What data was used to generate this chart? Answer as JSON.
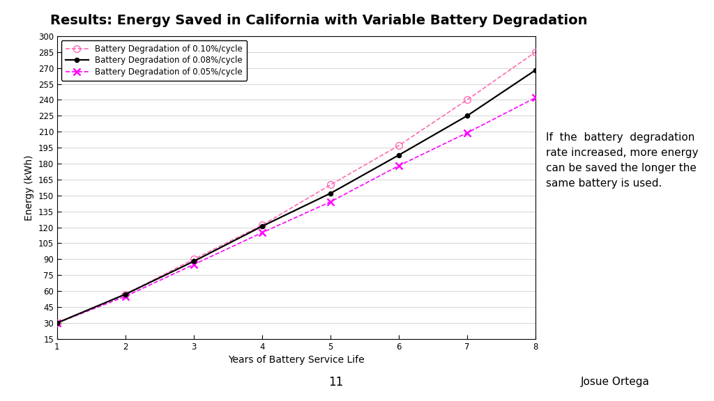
{
  "title": "Results: Energy Saved in California with Variable Battery Degradation",
  "xlabel": "Years of Battery Service Life",
  "ylabel": "Energy (kWh)",
  "x": [
    1,
    2,
    3,
    4,
    5,
    6,
    7,
    8
  ],
  "y_010": [
    30,
    57,
    90,
    122,
    160,
    197,
    240,
    285
  ],
  "y_008": [
    30,
    57,
    88,
    121,
    152,
    188,
    225,
    268
  ],
  "y_005": [
    30,
    55,
    85,
    115,
    144,
    178,
    209,
    242
  ],
  "color_010": "#FF69B4",
  "color_008": "#000000",
  "color_005": "#FF00FF",
  "label_010": "Battery Degradation of 0.10%/cycle",
  "label_008": "Battery Degradation of 0.08%/cycle",
  "label_005": "Battery Degradation of 0.05%/cycle",
  "xlim": [
    1,
    8
  ],
  "ylim": [
    15,
    300
  ],
  "yticks": [
    15,
    30,
    45,
    60,
    75,
    90,
    105,
    120,
    135,
    150,
    165,
    180,
    195,
    210,
    225,
    240,
    255,
    270,
    285,
    300
  ],
  "xticks": [
    1,
    2,
    3,
    4,
    5,
    6,
    7,
    8
  ],
  "annotation_text": "If  the  battery  degradation\nrate increased, more energy\ncan be saved the longer the\nsame battery is used.",
  "footer_center": "11",
  "footer_right": "Josue Ortega",
  "title_fontsize": 14,
  "axis_fontsize": 10,
  "tick_fontsize": 8.5,
  "legend_fontsize": 8.5,
  "annotation_fontsize": 11,
  "bg_color": "#FFFFFF",
  "plot_bg_color": "#FFFFFF",
  "footer_bg_color": "#F0F0F0",
  "grid_color": "#CCCCCC"
}
